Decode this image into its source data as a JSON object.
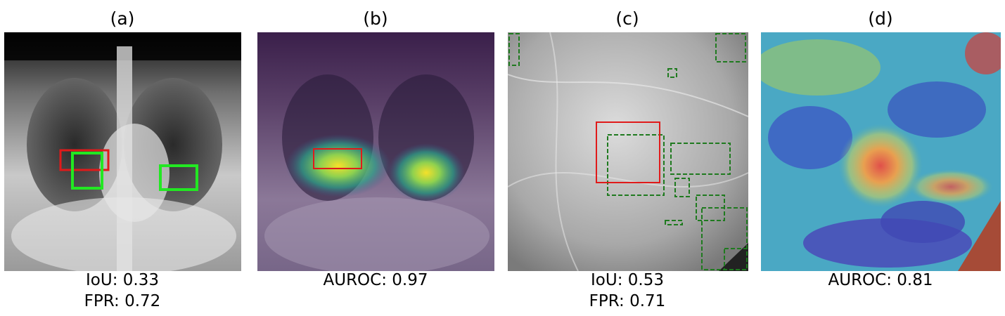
{
  "panels": [
    {
      "label": "(a)",
      "metrics": [
        "IoU: 0.33",
        "FPR: 0.72"
      ]
    },
    {
      "label": "(b)",
      "metrics": [
        "AUROC: 0.97"
      ]
    },
    {
      "label": "(c)",
      "metrics": [
        "IoU: 0.53",
        "FPR: 0.71"
      ]
    },
    {
      "label": "(d)",
      "metrics": [
        "AUROC: 0.81"
      ]
    }
  ],
  "colors": {
    "ground_truth_box": "#e01a1a",
    "prediction_box_solid": "#22e822",
    "prediction_box_dashed": "#1f7a1f"
  }
}
